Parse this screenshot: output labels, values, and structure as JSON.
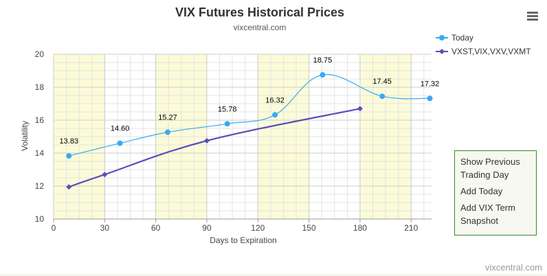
{
  "chart_data": {
    "type": "line",
    "title": "VIX Futures Historical Prices",
    "subtitle": "vixcentral.com",
    "xlabel": "Days to Expiration",
    "ylabel": "Volatility",
    "xlim": [
      0,
      222
    ],
    "ylim": [
      10,
      20
    ],
    "x_ticks": [
      0,
      30,
      60,
      90,
      120,
      150,
      180,
      210
    ],
    "y_ticks": [
      10,
      12,
      14,
      16,
      18,
      20
    ],
    "shaded_bands": [
      [
        0,
        30
      ],
      [
        60,
        90
      ],
      [
        120,
        150
      ],
      [
        180,
        210
      ]
    ],
    "band_color": "#fbfbd8",
    "grid": true,
    "legend_position": "top-right",
    "series": [
      {
        "name": "Today",
        "color": "#39aaf0",
        "marker": "circle",
        "curve": "smooth",
        "x": [
          9,
          39,
          67,
          102,
          130,
          158,
          193,
          221
        ],
        "y": [
          13.83,
          14.6,
          15.27,
          15.78,
          16.32,
          18.75,
          17.45,
          17.32
        ],
        "data_labels": [
          "13.83",
          "14.60",
          "15.27",
          "15.78",
          "16.32",
          "18.75",
          "17.45",
          "17.32"
        ]
      },
      {
        "name": "VXST,VIX,VXV,VXMT",
        "color": "#5a4dbb",
        "marker": "diamond",
        "curve": "smooth",
        "x": [
          9,
          30,
          90,
          180
        ],
        "y": [
          11.95,
          12.7,
          14.75,
          16.7
        ]
      }
    ]
  },
  "popup_menu": {
    "items": [
      "Show Previous Trading Day",
      "Add Today",
      "Add VIX Term Snapshot"
    ]
  },
  "credit": "vixcentral.com"
}
